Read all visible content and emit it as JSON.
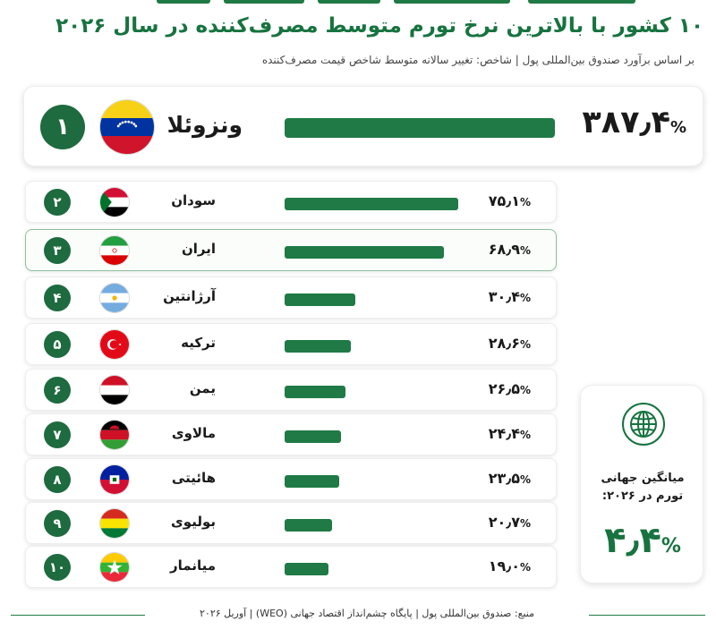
{
  "title": "۱۰ کشور با بالاترین نرخ تورم متوسط مصرف‌کننده در سال ۲۰۲۶",
  "subtitle": "بر اساس برآورد صندوق بین‌المللی پول | شاخص: تغییر سالانه متوسط شاخص قیمت مصرف‌کننده",
  "colors": {
    "accent": "#1f7a45",
    "badge": "#1d6b3e"
  },
  "rows": [
    {
      "rank": "۱",
      "country": "ونزوئلا",
      "value_text": "۳۸۷٫۴",
      "pct": "%",
      "flag": "venezuela-flag"
    },
    {
      "rank": "۲",
      "country": "سودان",
      "value_text": "۷۵٫۱",
      "pct": "%",
      "flag": "sudan-flag"
    },
    {
      "rank": "۳",
      "country": "ایران",
      "value_text": "۶۸٫۹",
      "pct": "%",
      "flag": "iran-flag",
      "highlight": true
    },
    {
      "rank": "۴",
      "country": "آرژانتین",
      "value_text": "۳۰٫۴",
      "pct": "%",
      "flag": "argentina-flag"
    },
    {
      "rank": "۵",
      "country": "ترکیه",
      "value_text": "۲۸٫۶",
      "pct": "%",
      "flag": "turkey-flag"
    },
    {
      "rank": "۶",
      "country": "یمن",
      "value_text": "۲۶٫۵",
      "pct": "%",
      "flag": "yemen-flag"
    },
    {
      "rank": "۷",
      "country": "مالاوی",
      "value_text": "۲۴٫۴",
      "pct": "%",
      "flag": "malawi-flag"
    },
    {
      "rank": "۸",
      "country": "هائیتی",
      "value_text": "۲۳٫۵",
      "pct": "%",
      "flag": "haiti-flag"
    },
    {
      "rank": "۹",
      "country": "بولیوی",
      "value_text": "۲۰٫۷",
      "pct": "%",
      "flag": "bolivia-flag"
    },
    {
      "rank": "۱۰",
      "country": "میانمار",
      "value_text": "۱۹٫۰",
      "pct": "%",
      "flag": "myanmar-flag"
    }
  ],
  "average": {
    "icon": "globe-icon",
    "label": "میانگین جهانی تورم در ۲۰۲۶:",
    "value_text": "۴٫۴",
    "pct": "%"
  },
  "footer": "منبع: صندوق بین‌المللی پول | پایگاه چشم‌انداز اقتصاد جهانی (WEO) | آوریل ۲۰۲۶",
  "chart_data": {
    "type": "bar",
    "title": "۱۰ کشور با بالاترین نرخ تورم متوسط مصرف‌کننده در سال ۲۰۲۶",
    "categories": [
      "ونزوئلا",
      "سودان",
      "ایران",
      "آرژانتین",
      "ترکیه",
      "یمن",
      "مالاوی",
      "هائیتی",
      "بولیوی",
      "میانمار"
    ],
    "values": [
      387.4,
      75.1,
      68.9,
      30.4,
      28.6,
      26.5,
      24.4,
      23.5,
      20.7,
      19.0
    ],
    "xlabel": "",
    "ylabel": "",
    "grid": false,
    "orientation": "horizontal"
  }
}
